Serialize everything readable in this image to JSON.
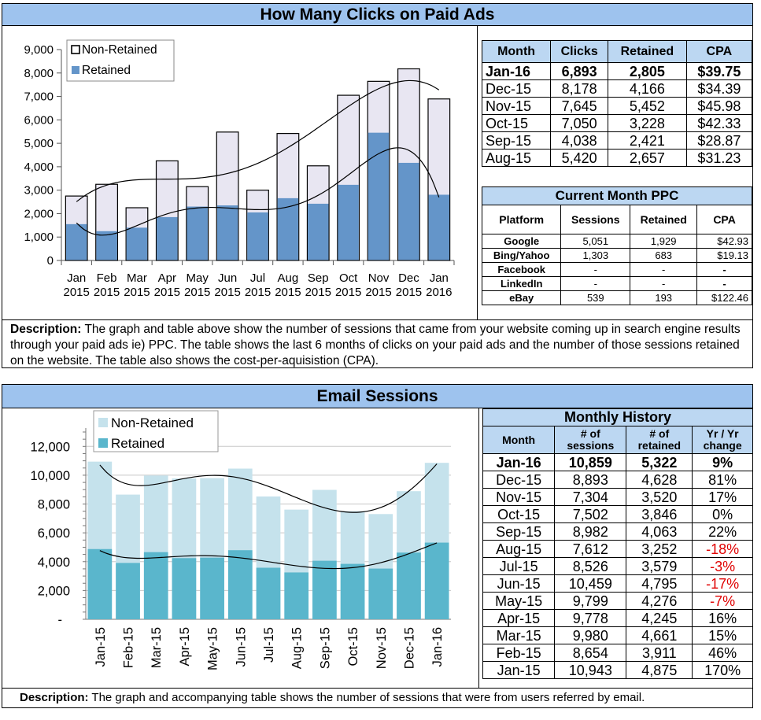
{
  "colors": {
    "banner": "#9ec3ee",
    "header_cell": "#bcd7f2",
    "retained_blue": "#6495c9",
    "nonretained_lav": "#e8e6f2",
    "email_retained": "#5ab6cc",
    "email_nonretained": "#c5e2ec",
    "negative": "#e00000"
  },
  "top": {
    "title": "How Many Clicks on Paid Ads",
    "chart_data": {
      "type": "bar",
      "stacked": true,
      "categories": [
        "Jan 2015",
        "Feb 2015",
        "Mar 2015",
        "Apr 2015",
        "May 2015",
        "Jun 2015",
        "Jul 2015",
        "Aug 2015",
        "Sep 2015",
        "Oct 2015",
        "Nov 2015",
        "Dec 2015",
        "Jan 2016"
      ],
      "cat_line1": [
        "Jan",
        "Feb",
        "Mar",
        "Apr",
        "May",
        "Jun",
        "Jul",
        "Aug",
        "Sep",
        "Oct",
        "Nov",
        "Dec",
        "Jan"
      ],
      "cat_line2": [
        "2015",
        "2015",
        "2015",
        "2015",
        "2015",
        "2015",
        "2015",
        "2015",
        "2015",
        "2015",
        "2015",
        "2015",
        "2016"
      ],
      "series": [
        {
          "name": "Non-Retained",
          "total_values": [
            2750,
            3250,
            2250,
            4250,
            3150,
            5480,
            3000,
            5420,
            4038,
            7050,
            7645,
            8178,
            6893
          ]
        },
        {
          "name": "Retained",
          "values": [
            1550,
            1250,
            1400,
            1850,
            2300,
            2350,
            2050,
            2657,
            2421,
            3228,
            5452,
            4166,
            2805
          ]
        }
      ],
      "ylim": [
        0,
        9000
      ],
      "yticks": [
        0,
        1000,
        2000,
        3000,
        4000,
        5000,
        6000,
        7000,
        8000,
        9000
      ],
      "ytick_labels": [
        "0",
        "1,000",
        "2,000",
        "3,000",
        "4,000",
        "5,000",
        "6,000",
        "7,000",
        "8,000",
        "9,000"
      ],
      "legend": [
        "Non-Retained",
        "Retained"
      ],
      "legend_position": "top-left",
      "trendlines": true
    },
    "table": {
      "headers": [
        "Month",
        "Clicks",
        "Retained",
        "CPA"
      ],
      "rows": [
        [
          "Jan-16",
          "6,893",
          "2,805",
          "$39.75"
        ],
        [
          "Dec-15",
          "8,178",
          "4,166",
          "$34.39"
        ],
        [
          "Nov-15",
          "7,645",
          "5,452",
          "$45.98"
        ],
        [
          "Oct-15",
          "7,050",
          "3,228",
          "$42.33"
        ],
        [
          "Sep-15",
          "4,038",
          "2,421",
          "$28.87"
        ],
        [
          "Aug-15",
          "5,420",
          "2,657",
          "$31.23"
        ]
      ]
    },
    "ppc": {
      "caption": "Current Month PPC",
      "headers": [
        "Platform",
        "Sessions",
        "Retained",
        "CPA"
      ],
      "rows": [
        [
          "Google",
          "5,051",
          "1,929",
          "$42.93"
        ],
        [
          "Bing/Yahoo",
          "1,303",
          "683",
          "$19.13"
        ],
        [
          "Facebook",
          "-",
          "-",
          "-"
        ],
        [
          "LinkedIn",
          "-",
          "-",
          "-"
        ],
        [
          "eBay",
          "539",
          "193",
          "$122.46"
        ]
      ]
    },
    "description_label": "Description:",
    "description_text": " The graph and table above show the number of sessions that came from your website coming up in search engine results through your paid ads ie) PPC. The table shows the last 6 months of clicks on your paid ads and the number of those sessions retained on the website. The table also shows the cost-per-aquisistion (CPA)."
  },
  "bottom": {
    "title": "Email Sessions",
    "chart_data": {
      "type": "bar",
      "stacked": true,
      "categories": [
        "Jan-15",
        "Feb-15",
        "Mar-15",
        "Apr-15",
        "May-15",
        "Jun-15",
        "Jul-15",
        "Aug-15",
        "Sep-15",
        "Oct-15",
        "Nov-15",
        "Dec-15",
        "Jan-16"
      ],
      "series": [
        {
          "name": "Non-Retained",
          "total_values": [
            10943,
            8654,
            9980,
            9778,
            9799,
            10459,
            8526,
            7612,
            8982,
            7502,
            7304,
            8893,
            10859
          ]
        },
        {
          "name": "Retained",
          "values": [
            4875,
            3911,
            4661,
            4245,
            4276,
            4795,
            3579,
            3252,
            4063,
            3846,
            3520,
            4628,
            5322
          ]
        }
      ],
      "ylim": [
        0,
        13000
      ],
      "yticks": [
        2000,
        4000,
        6000,
        8000,
        10000,
        12000
      ],
      "ytick_labels": [
        "2,000",
        "4,000",
        "6,000",
        "8,000",
        "10,000",
        "12,000"
      ],
      "zero_label": "-",
      "legend": [
        "Non-Retained",
        "Retained"
      ],
      "legend_position": "top-left",
      "trendlines": true
    },
    "table": {
      "caption": "Monthly History",
      "headers": [
        [
          "Month"
        ],
        [
          "# of",
          "sessions"
        ],
        [
          "# of",
          "retained"
        ],
        [
          "Yr / Yr",
          "change"
        ]
      ],
      "rows": [
        [
          "Jan-16",
          "10,859",
          "5,322",
          "9%"
        ],
        [
          "Dec-15",
          "8,893",
          "4,628",
          "81%"
        ],
        [
          "Nov-15",
          "7,304",
          "3,520",
          "17%"
        ],
        [
          "Oct-15",
          "7,502",
          "3,846",
          "0%"
        ],
        [
          "Sep-15",
          "8,982",
          "4,063",
          "22%"
        ],
        [
          "Aug-15",
          "7,612",
          "3,252",
          "-18%"
        ],
        [
          "Jul-15",
          "8,526",
          "3,579",
          "-3%"
        ],
        [
          "Jun-15",
          "10,459",
          "4,795",
          "-17%"
        ],
        [
          "May-15",
          "9,799",
          "4,276",
          "-7%"
        ],
        [
          "Apr-15",
          "9,778",
          "4,245",
          "16%"
        ],
        [
          "Mar-15",
          "9,980",
          "4,661",
          "15%"
        ],
        [
          "Feb-15",
          "8,654",
          "3,911",
          "46%"
        ],
        [
          "Jan-15",
          "10,943",
          "4,875",
          "170%"
        ]
      ]
    },
    "description_label": "Description:",
    "description_text": " The graph and accompanying table shows the number of sessions that were from users referred by email."
  }
}
